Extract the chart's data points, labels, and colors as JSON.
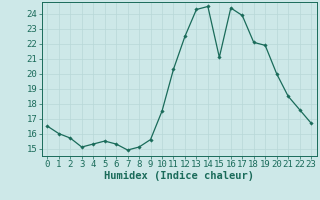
{
  "x": [
    0,
    1,
    2,
    3,
    4,
    5,
    6,
    7,
    8,
    9,
    10,
    11,
    12,
    13,
    14,
    15,
    16,
    17,
    18,
    19,
    20,
    21,
    22,
    23
  ],
  "y": [
    16.5,
    16.0,
    15.7,
    15.1,
    15.3,
    15.5,
    15.3,
    14.9,
    15.1,
    15.6,
    17.5,
    20.3,
    22.5,
    24.3,
    24.5,
    21.1,
    24.4,
    23.9,
    22.1,
    21.9,
    20.0,
    18.5,
    17.6,
    16.7
  ],
  "line_color": "#1a6b5a",
  "marker": "D",
  "marker_size": 1.8,
  "line_width": 0.9,
  "xlabel": "Humidex (Indice chaleur)",
  "ylabel": "",
  "xlim": [
    -0.5,
    23.5
  ],
  "ylim": [
    14.5,
    24.8
  ],
  "yticks": [
    15,
    16,
    17,
    18,
    19,
    20,
    21,
    22,
    23,
    24
  ],
  "xticks": [
    0,
    1,
    2,
    3,
    4,
    5,
    6,
    7,
    8,
    9,
    10,
    11,
    12,
    13,
    14,
    15,
    16,
    17,
    18,
    19,
    20,
    21,
    22,
    23
  ],
  "background_color": "#cde8e8",
  "grid_color": "#b8d8d8",
  "line_border_color": "#5a9a8a",
  "tick_color": "#1a6b5a",
  "label_color": "#1a6b5a",
  "font_size": 6.5,
  "xlabel_font_size": 7.5
}
